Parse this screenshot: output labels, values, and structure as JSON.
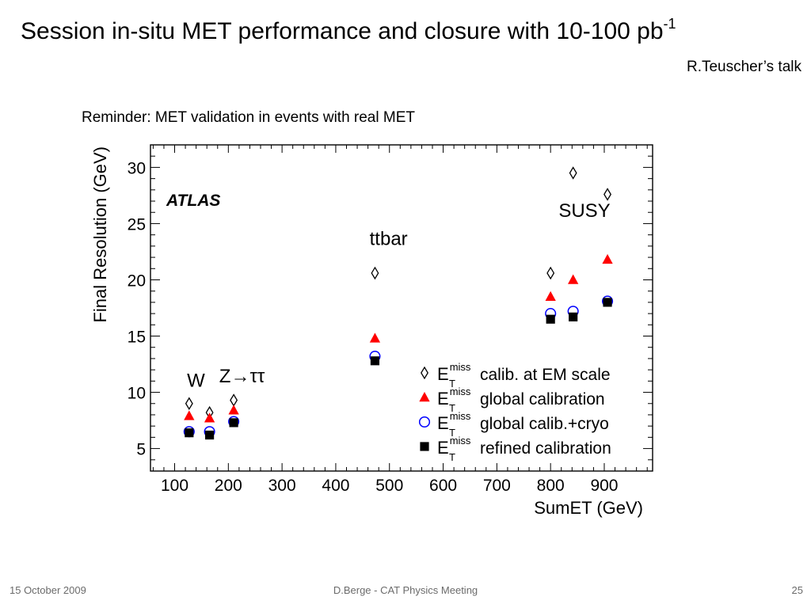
{
  "slide": {
    "title": "Session in-situ MET performance and closure with 10-100 pb",
    "title_sup": "-1",
    "subtitle_right": "R.Teuscher’s talk",
    "reminder": "Reminder: MET validation in events with real MET"
  },
  "footer": {
    "date": "15 October 2009",
    "center": "D.Berge - CAT Physics Meeting",
    "page": "25"
  },
  "chart_data": {
    "type": "scatter",
    "title": "",
    "xlabel": "SumET (GeV)",
    "ylabel": "Final Resolution (GeV)",
    "xlim": [
      55,
      990
    ],
    "ylim": [
      3,
      32
    ],
    "xticks": [
      100,
      200,
      300,
      400,
      500,
      600,
      700,
      800,
      900
    ],
    "yticks": [
      5,
      10,
      15,
      20,
      25,
      30
    ],
    "grid": false,
    "legend_position": "bottom-right",
    "logo": "ATLAS",
    "annotations": [
      {
        "text": "W",
        "x": 123,
        "y": 10.5
      },
      {
        "text": "Z",
        "arrow": "→",
        "text2": "ττ",
        "x": 183,
        "y": 10.9
      },
      {
        "text": "ttbar",
        "x": 463,
        "y": 23.1
      },
      {
        "text": "SUSY",
        "x": 815,
        "y": 25.6
      }
    ],
    "series": [
      {
        "name": "calib. at EM scale",
        "marker": "diamond-open",
        "color": "#000000",
        "x": [
          127,
          165,
          210,
          473,
          800,
          842,
          906
        ],
        "y": [
          9.0,
          8.2,
          9.3,
          20.6,
          20.6,
          29.5,
          27.6
        ]
      },
      {
        "name": "global calibration",
        "marker": "triangle",
        "color": "#ff0000",
        "x": [
          127,
          165,
          210,
          473,
          800,
          842,
          906
        ],
        "y": [
          7.9,
          7.7,
          8.4,
          14.8,
          18.5,
          20.0,
          21.8
        ]
      },
      {
        "name": "global calib.+cryo",
        "marker": "circle-open",
        "color": "#0000ff",
        "x": [
          127,
          165,
          210,
          473,
          800,
          842,
          906
        ],
        "y": [
          6.5,
          6.5,
          7.4,
          13.2,
          17.0,
          17.2,
          18.1
        ]
      },
      {
        "name": "refined calibration",
        "marker": "square",
        "color": "#000000",
        "x": [
          127,
          165,
          210,
          473,
          800,
          842,
          906
        ],
        "y": [
          6.4,
          6.2,
          7.3,
          12.8,
          16.5,
          16.7,
          18.0
        ]
      }
    ],
    "legend_symbol": {
      "main": "E",
      "sup": "miss",
      "sub": "T"
    }
  }
}
